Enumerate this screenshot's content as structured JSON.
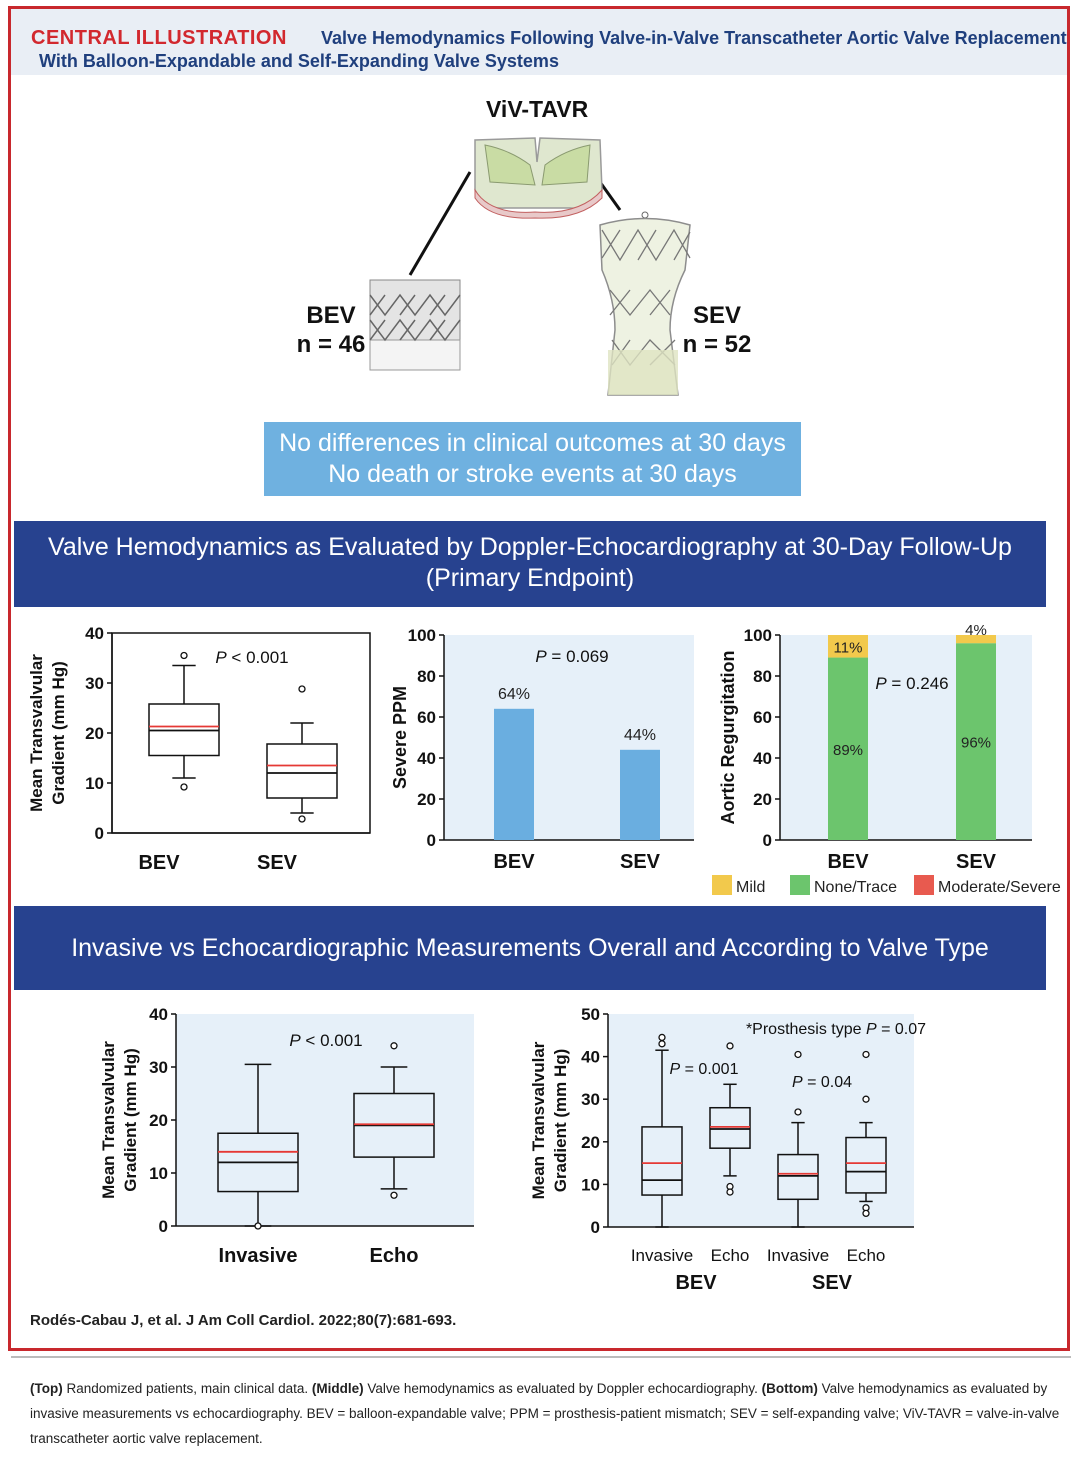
{
  "header": {
    "label": "CENTRAL ILLUSTRATION",
    "title_line1": "Valve Hemodynamics Following Valve-in-Valve Transcatheter Aortic Valve Replacement",
    "title_line2": "With Balloon-Expandable and Self-Expanding Valve Systems"
  },
  "top": {
    "viv_label": "ViV-TAVR",
    "bev_label": "BEV",
    "bev_n": "n = 46",
    "sev_label": "SEV",
    "sev_n": "n = 52",
    "notice_line1": "No differences in clinical outcomes at 30 days",
    "notice_line2": "No death or stroke events at 30 days"
  },
  "middle": {
    "banner_line1": "Valve Hemodynamics as Evaluated by Doppler-Echocardiography at 30-Day Follow-Up",
    "banner_line2": "(Primary Endpoint)"
  },
  "bottom": {
    "banner": "Invasive vs Echocardiographic Measurements Overall and According to Valve Type"
  },
  "chart_data": [
    {
      "type": "box",
      "ylabel": "Mean Transvalvular Gradient (mm Hg)",
      "ylabel_line1": "Mean Transvalvular",
      "ylabel_line2": "Gradient (mm Hg)",
      "ylim": [
        0,
        40
      ],
      "yticks": [
        "0",
        "10",
        "20",
        "30",
        "40"
      ],
      "categories": [
        "BEV",
        "SEV"
      ],
      "pvalue": "P < 0.001",
      "boxes": [
        {
          "name": "BEV",
          "whisker_low": 11,
          "q1": 15.5,
          "median": 20.5,
          "mean": 21.3,
          "q3": 25.8,
          "whisker_high": 33.5,
          "outliers": [
            35.5,
            9.2
          ]
        },
        {
          "name": "SEV",
          "whisker_low": 4,
          "q1": 7,
          "median": 12,
          "mean": 13.5,
          "q3": 17.8,
          "whisker_high": 22,
          "outliers": [
            28.8,
            2.8
          ]
        }
      ]
    },
    {
      "type": "bar",
      "ylabel": "Severe PPM",
      "ylim": [
        0,
        100
      ],
      "yticks": [
        "0",
        "20",
        "40",
        "60",
        "80",
        "100"
      ],
      "categories": [
        "BEV",
        "SEV"
      ],
      "values": [
        64,
        44
      ],
      "labels": [
        "64%",
        "44%"
      ],
      "pvalue": "P = 0.069"
    },
    {
      "type": "stacked_bar",
      "ylabel": "Aortic Regurgitation",
      "ylim": [
        0,
        100
      ],
      "yticks": [
        "0",
        "20",
        "40",
        "60",
        "80",
        "100"
      ],
      "categories": [
        "BEV",
        "SEV"
      ],
      "pvalue": "P = 0.246",
      "series": [
        {
          "name": "None/Trace",
          "values": [
            89,
            96
          ],
          "labels": [
            "89%",
            "96%"
          ],
          "color": "#6cc56d"
        },
        {
          "name": "Mild",
          "values": [
            11,
            4
          ],
          "labels": [
            "11%",
            "4%"
          ],
          "color": "#f2c94c"
        },
        {
          "name": "Moderate/Severe",
          "values": [
            0,
            0
          ],
          "labels": [
            "",
            ""
          ],
          "color": "#e85a4f"
        }
      ],
      "legend": [
        "Mild",
        "None/Trace",
        "Moderate/Severe"
      ]
    },
    {
      "type": "box",
      "ylabel": "Mean Transvalvular Gradient (mm Hg)",
      "ylabel_line1": "Mean Transvalvular",
      "ylabel_line2": "Gradient (mm Hg)",
      "ylim": [
        0,
        40
      ],
      "yticks": [
        "0",
        "10",
        "20",
        "30",
        "40"
      ],
      "categories": [
        "Invasive",
        "Echo"
      ],
      "pvalue": "P < 0.001",
      "boxes": [
        {
          "name": "Invasive",
          "whisker_low": 0,
          "q1": 6.5,
          "median": 12,
          "mean": 14,
          "q3": 17.5,
          "whisker_high": 30.5,
          "outliers": [
            0
          ]
        },
        {
          "name": "Echo",
          "whisker_low": 7,
          "q1": 13,
          "median": 19,
          "mean": 19.2,
          "q3": 25,
          "whisker_high": 30,
          "outliers": [
            34,
            5.8
          ]
        }
      ]
    },
    {
      "type": "box",
      "ylabel": "Mean Transvalvular Gradient (mm Hg)",
      "ylabel_line1": "Mean Transvalvular",
      "ylabel_line2": "Gradient (mm Hg)",
      "ylim": [
        0,
        50
      ],
      "yticks": [
        "0",
        "10",
        "20",
        "30",
        "40",
        "50"
      ],
      "categories": [
        "Invasive",
        "Echo",
        "Invasive",
        "Echo"
      ],
      "groups": [
        "BEV",
        "SEV"
      ],
      "annotation": "*Prosthesis type P = 0.07",
      "pvalues": [
        "P = 0.001",
        "P = 0.04"
      ],
      "boxes": [
        {
          "name": "BEV Invasive",
          "whisker_low": 0,
          "q1": 7.5,
          "median": 11,
          "mean": 15,
          "q3": 23.5,
          "whisker_high": 41.5,
          "outliers": [
            44.5,
            43
          ]
        },
        {
          "name": "BEV Echo",
          "whisker_low": 12,
          "q1": 18.5,
          "median": 23,
          "mean": 23.5,
          "q3": 28,
          "whisker_high": 33.5,
          "outliers": [
            42.5,
            9.5,
            8.2
          ]
        },
        {
          "name": "SEV Invasive",
          "whisker_low": 0,
          "q1": 6.5,
          "median": 12,
          "mean": 12.5,
          "q3": 17,
          "whisker_high": 24.5,
          "outliers": [
            40.5,
            27
          ]
        },
        {
          "name": "SEV Echo",
          "whisker_low": 6,
          "q1": 8,
          "median": 13,
          "mean": 15,
          "q3": 21,
          "whisker_high": 24.5,
          "outliers": [
            40.5,
            30,
            4.5,
            3.2
          ]
        }
      ]
    }
  ],
  "citation": "Rodés-Cabau J, et al. J Am Coll Cardiol. 2022;80(7):681-693.",
  "caption": {
    "top_tag": "(Top)",
    "top_text": " Randomized patients, main clinical data. ",
    "middle_tag": "(Middle)",
    "middle_text": " Valve hemodynamics as evaluated by Doppler echocardiography. ",
    "bottom_tag": "(Bottom)",
    "bottom_text": " Valve hemodynamics as evaluated by invasive measurements vs echocardiography. BEV = balloon-expandable valve; PPM = prosthesis-patient mismatch; SEV = self-expanding valve; ViV-TAVR = valve-in-valve transcatheter aortic valve replacement."
  },
  "colors": {
    "red": "#d2282e",
    "navy": "#27428f",
    "notice_blue": "#6fb1e0",
    "bar_blue": "#6aaee0",
    "median_red": "#e53935",
    "plot_bg": "#e6f0f9"
  }
}
